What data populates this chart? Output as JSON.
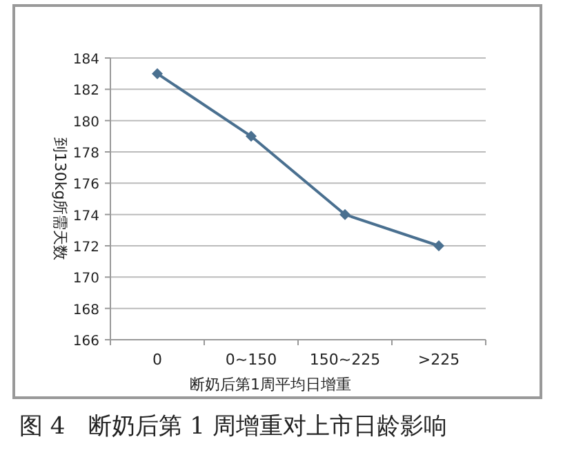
{
  "chart_data": {
    "type": "line",
    "ylabel": "到130kg所需天数",
    "xlabel": "断奶后第1周平均日增重",
    "categories": [
      "0",
      "0~150",
      "150~225",
      ">225"
    ],
    "series": [
      {
        "color": "#4a7090",
        "values": [
          183,
          179,
          174,
          172
        ]
      }
    ],
    "ylim": [
      166,
      184
    ],
    "yticks": [
      166,
      168,
      170,
      172,
      174,
      176,
      178,
      180,
      182,
      184
    ],
    "grid": "y",
    "marker": "diamond",
    "annotations": [
      "图 4　断奶后第 1 周增重对上市日龄影响"
    ]
  }
}
